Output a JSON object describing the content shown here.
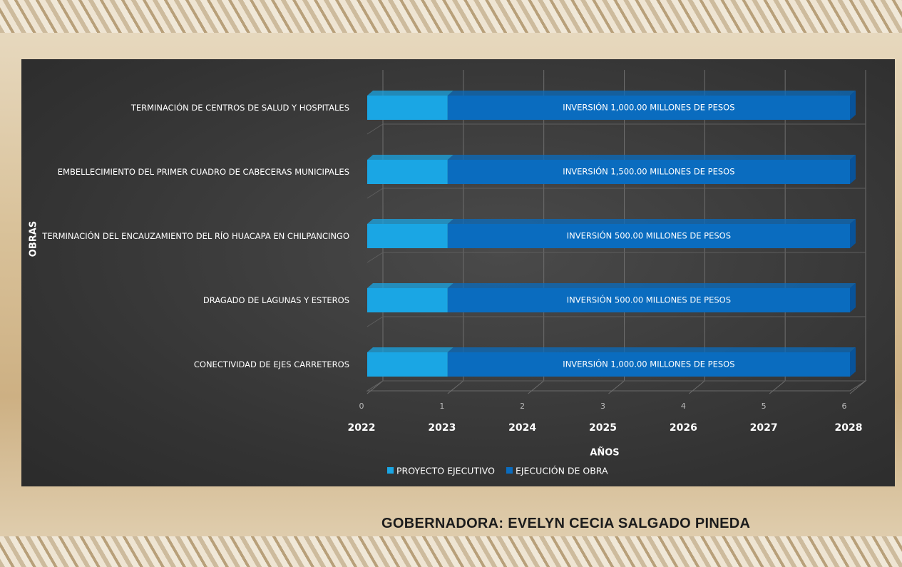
{
  "chart_data": {
    "type": "stacked-bar-horizontal",
    "categories": [
      "TERMINACIÓN DE CENTROS DE SALUD Y HOSPITALES",
      "EMBELLECIMIENTO DEL PRIMER CUADRO DE CABECERAS MUNICIPALES",
      "TERMINACIÓN DEL ENCAUZAMIENTO DEL RÍO HUACAPA EN CHILPANCINGO",
      "DRAGADO DE LAGUNAS Y ESTEROS",
      "CONECTIVIDAD DE EJES CARRETEROS"
    ],
    "series": [
      {
        "name": "PROYECTO EJECUTIVO",
        "color": "#1aa6e4",
        "values": [
          1,
          1,
          1,
          1,
          1
        ]
      },
      {
        "name": "EJECUCIÓN DE OBRA",
        "color": "#0a6cbf",
        "values": [
          5,
          5,
          5,
          5,
          5
        ]
      }
    ],
    "annotations": [
      "INVERSIÓN 1,000.00 MILLONES DE PESOS",
      "INVERSIÓN 1,500.00 MILLONES DE PESOS",
      "INVERSIÓN 500.00 MILLONES DE PESOS",
      "INVERSIÓN 500.00 MILLONES DE PESOS",
      "INVERSIÓN 1,000.00 MILLONES DE PESOS"
    ],
    "xlim": [
      0,
      6
    ],
    "xticks": [
      0,
      1,
      2,
      3,
      4,
      5,
      6
    ],
    "year_labels": [
      "2022",
      "2023",
      "2024",
      "2025",
      "2026",
      "2027",
      "2028"
    ],
    "xlabel": "AÑOS",
    "ylabel": "OBRAS",
    "grid": true,
    "legend": "bottom"
  },
  "footer": "GOBERNADORA: EVELYN CECIA SALGADO PINEDA"
}
